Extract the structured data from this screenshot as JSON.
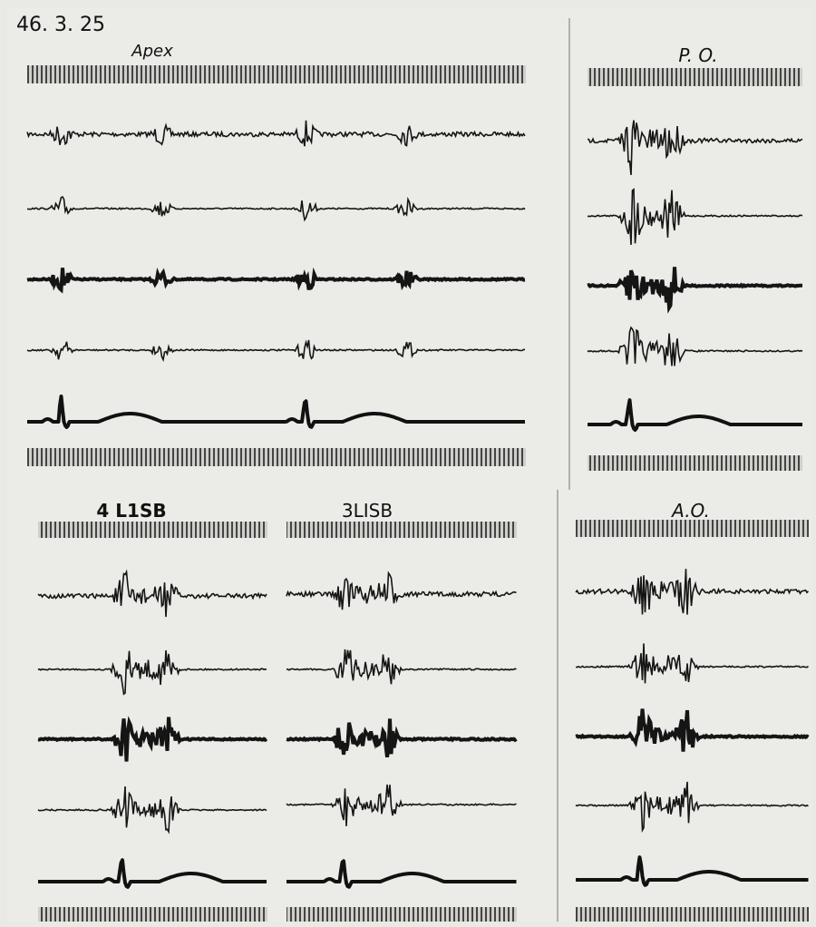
{
  "header": {
    "date": "46. 3. 25"
  },
  "panels": [
    {
      "label": "Apex"
    },
    {
      "label": "P. O."
    },
    {
      "label": "4 L1SB"
    },
    {
      "label": "3LISB"
    },
    {
      "label": "A.O."
    }
  ]
}
